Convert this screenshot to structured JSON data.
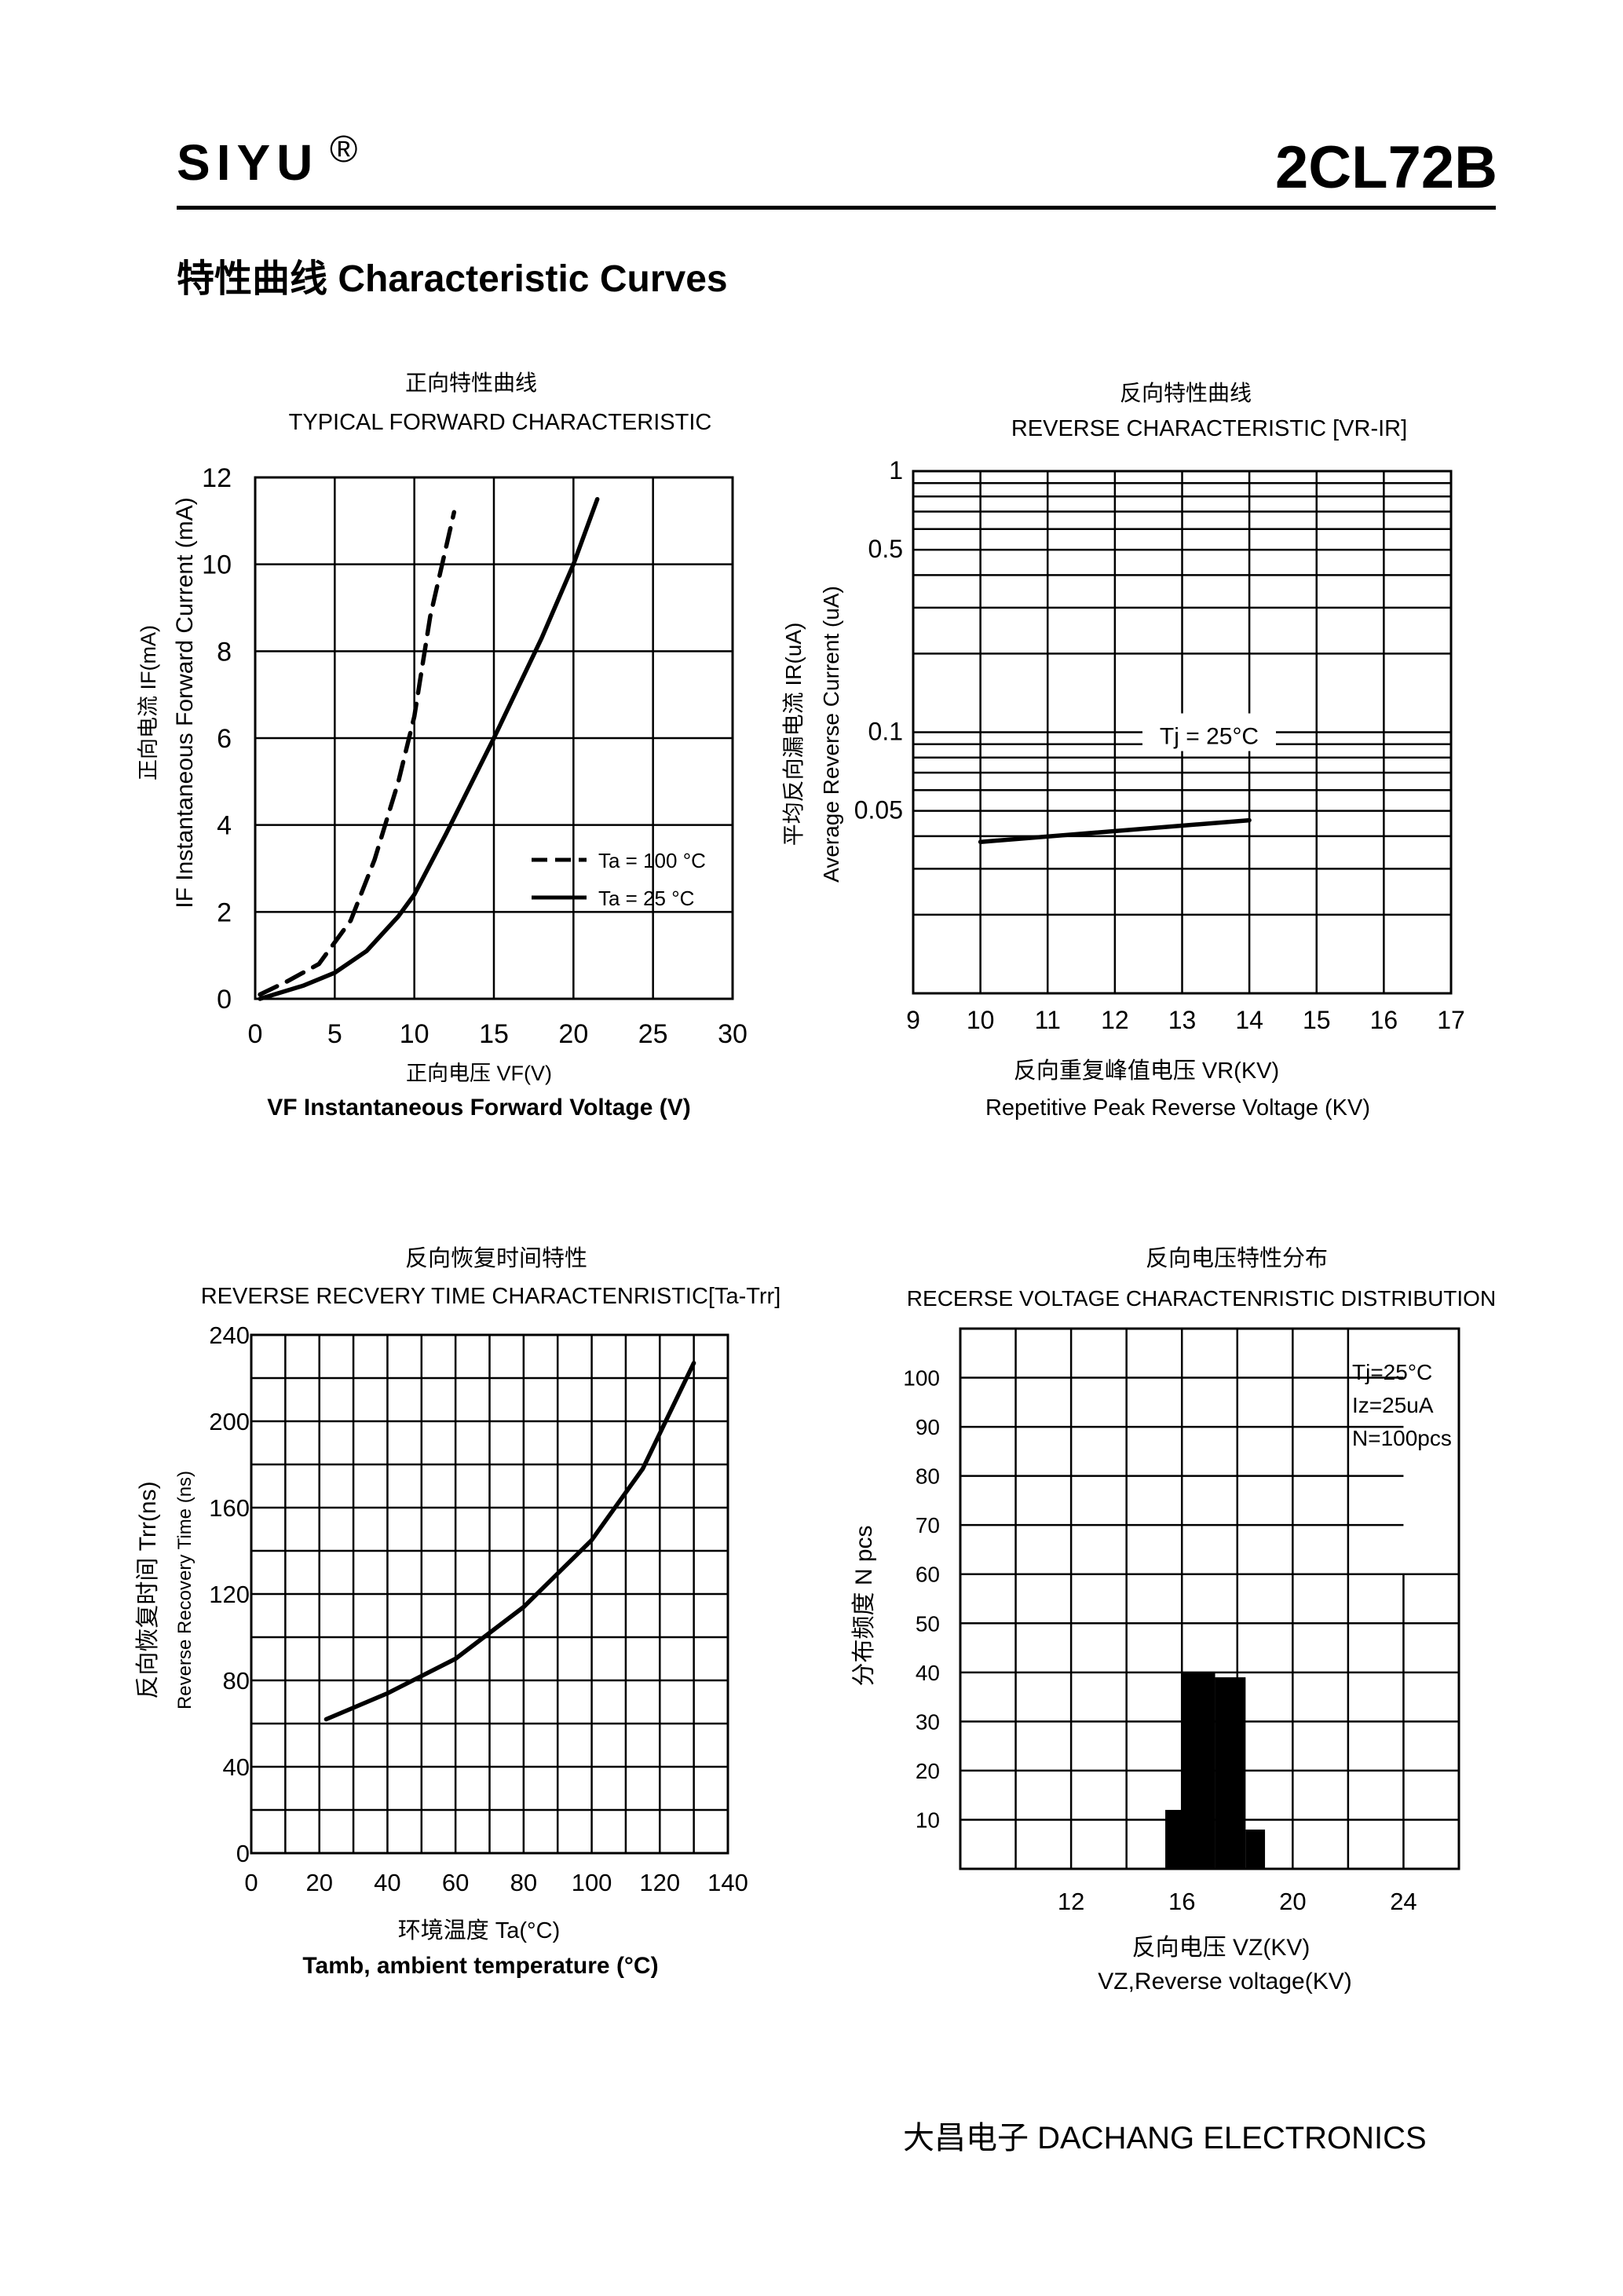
{
  "header": {
    "brand": "SIYU",
    "reg_mark": "®",
    "part_no": "2CL72B",
    "section_title": "特性曲线   Characteristic Curves"
  },
  "footer": {
    "company": "大昌电子   DACHANG ELECTRONICS"
  },
  "chart_data": [
    {
      "type": "line",
      "title_cn": "正向特性曲线",
      "title": "TYPICAL FORWARD CHARACTERISTIC",
      "xlabel_cn": "正向电压   VF(V)",
      "xlabel": "VF  Instantaneous Forward Voltage (V)",
      "ylabel_cn": "正向电流   IF(mA)",
      "ylabel": "IF Instantaneous Forward Current (mA)",
      "xlim": [
        0,
        30
      ],
      "ylim": [
        0,
        12
      ],
      "xticks": [
        0,
        5,
        10,
        15,
        20,
        25,
        30
      ],
      "yticks": [
        0,
        2,
        4,
        6,
        8,
        10,
        12
      ],
      "grid": true,
      "legend": "lower-right",
      "series": [
        {
          "name": "Ta = 100 °C",
          "style": "dashed",
          "x": [
            0.3,
            2,
            4,
            6,
            7.5,
            9,
            10,
            11,
            12.5
          ],
          "y": [
            0.1,
            0.4,
            0.8,
            1.8,
            3.2,
            5.0,
            6.5,
            8.8,
            11.2
          ]
        },
        {
          "name": "Ta = 25 °C",
          "style": "solid",
          "x": [
            0.3,
            3,
            5,
            7,
            9,
            10,
            12,
            15,
            18,
            20,
            21.5
          ],
          "y": [
            0,
            0.3,
            0.6,
            1.1,
            1.9,
            2.4,
            3.8,
            6.0,
            8.3,
            10,
            11.5
          ]
        }
      ]
    },
    {
      "type": "line",
      "title_cn": "反向特性曲线",
      "title": "REVERSE CHARACTERISTIC [VR-IR]",
      "xlabel_cn": "反向重复峰值电压      VR(KV)",
      "xlabel": "Repetitive Peak Reverse Voltage (KV)",
      "ylabel_cn": "平均反向漏电流   IR(uA)",
      "ylabel": "Average Reverse  Current  (uA)",
      "xlim": [
        9,
        17
      ],
      "ylim": [
        0.01,
        1
      ],
      "yscale": "log",
      "xticks": [
        9,
        10,
        11,
        12,
        13,
        14,
        15,
        16,
        17
      ],
      "yticks": [
        1,
        0.5,
        0.1,
        0.05
      ],
      "ytick_labels": [
        "1",
        "0.5",
        "0.1",
        "0.05"
      ],
      "grid": true,
      "annotation": "Tj = 25°C",
      "series": [
        {
          "x": [
            10,
            14
          ],
          "y": [
            0.038,
            0.046
          ]
        }
      ]
    },
    {
      "type": "line",
      "title_cn": "反向恢复时间特性",
      "title": "REVERSE RECVERY TIME CHARACTENRISTIC[Ta-Trr]",
      "xlabel_cn": "环境温度  Ta(°C)",
      "xlabel": "Tamb, ambient temperature (°C)",
      "ylabel_cn": "反向恢复时间   Trr(ns)",
      "ylabel": "Reverse Recovery Time (ns)",
      "xlim": [
        0,
        140
      ],
      "ylim": [
        0,
        240
      ],
      "xticks": [
        0,
        20,
        40,
        60,
        80,
        100,
        120,
        140
      ],
      "yticks": [
        0,
        40,
        80,
        120,
        160,
        200,
        240
      ],
      "grid": true,
      "series": [
        {
          "x": [
            22,
            40,
            60,
            80,
            100,
            115,
            130
          ],
          "y": [
            62,
            74,
            90,
            114,
            145,
            178,
            227
          ]
        }
      ]
    },
    {
      "type": "bar",
      "title_cn": "反向电压特性分布",
      "title": "RECERSE VOLTAGE CHARACTENRISTIC DISTRIBUTION",
      "xlabel_cn": "反向电压  VZ(KV)",
      "xlabel": "VZ,Reverse voltage(KV)",
      "ylabel_cn": "分布频度   N pcs",
      "xlim": [
        8,
        26
      ],
      "ylim": [
        0,
        110
      ],
      "xticks": [
        12,
        16,
        20,
        24
      ],
      "yticks": [
        10,
        20,
        30,
        40,
        50,
        60,
        70,
        80,
        90,
        100
      ],
      "grid": true,
      "annotation": [
        "Tj=25°C",
        "Iz=25uA",
        "N=100pcs"
      ],
      "bars": [
        {
          "x0": 15.4,
          "x1": 16.0,
          "y": 12
        },
        {
          "x0": 16.0,
          "x1": 17.2,
          "y": 40
        },
        {
          "x0": 17.2,
          "x1": 18.3,
          "y": 39
        },
        {
          "x0": 18.3,
          "x1": 19.0,
          "y": 8
        }
      ]
    }
  ]
}
